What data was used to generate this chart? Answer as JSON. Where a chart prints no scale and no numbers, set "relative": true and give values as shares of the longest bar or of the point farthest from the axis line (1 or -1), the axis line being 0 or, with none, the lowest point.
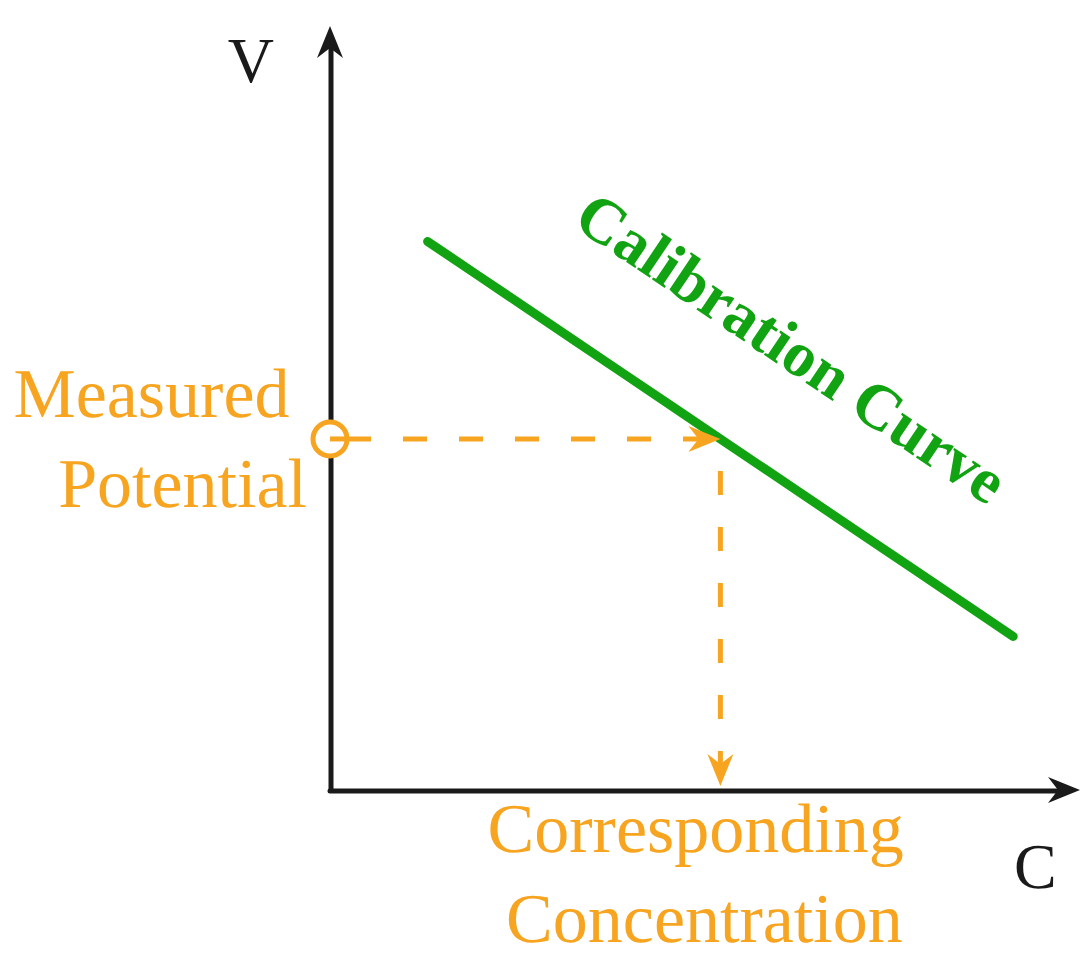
{
  "chart_data": {
    "type": "line",
    "relative": true,
    "xlabel": "C",
    "ylabel": "V",
    "categories": [
      null,
      null,
      null,
      null,
      null,
      null,
      null,
      null,
      null,
      null,
      null,
      null,
      null,
      null,
      null,
      null
    ],
    "series": [
      {
        "name": "Calibration Curve",
        "color": "#12a312",
        "values": [
          null,
          null,
          1,
          0.94,
          0.88,
          0.82,
          0.76,
          0.7,
          0.64,
          0.58,
          0.52,
          0.46,
          0.4,
          0.34,
          0.28,
          null
        ]
      }
    ],
    "ref_lines": [
      {
        "axis": "y",
        "value": 0.64,
        "label": "Measured Potential",
        "color": "#f7a521",
        "line_style": "dashed"
      }
    ],
    "annotations": [
      "Corresponding Concentration"
    ]
  }
}
